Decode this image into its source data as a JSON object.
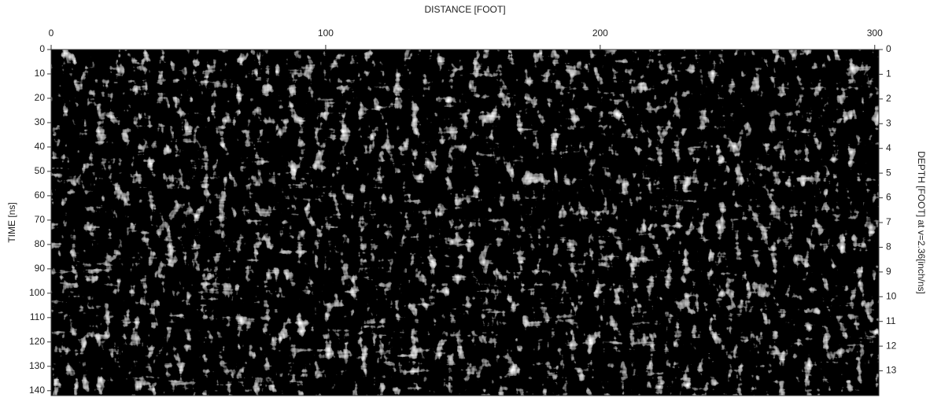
{
  "chart_data": {
    "type": "radargram",
    "xlabel": "DISTANCE [FOOT]",
    "ylabel": "TIME [ns]",
    "y2label": "DEPTH [FOOT] at v=2.36[inch/ns]",
    "xlim": [
      0,
      301.5
    ],
    "xticks": [
      0,
      100,
      200,
      300
    ],
    "ylim": [
      0,
      142
    ],
    "yticks": [
      0,
      10,
      20,
      30,
      40,
      50,
      60,
      70,
      80,
      90,
      100,
      110,
      120,
      130,
      140
    ],
    "y2lim": [
      0,
      14
    ],
    "y2ticks": [
      0,
      1,
      2,
      3,
      4,
      5,
      6,
      7,
      8,
      9,
      10,
      11,
      12,
      13
    ]
  }
}
